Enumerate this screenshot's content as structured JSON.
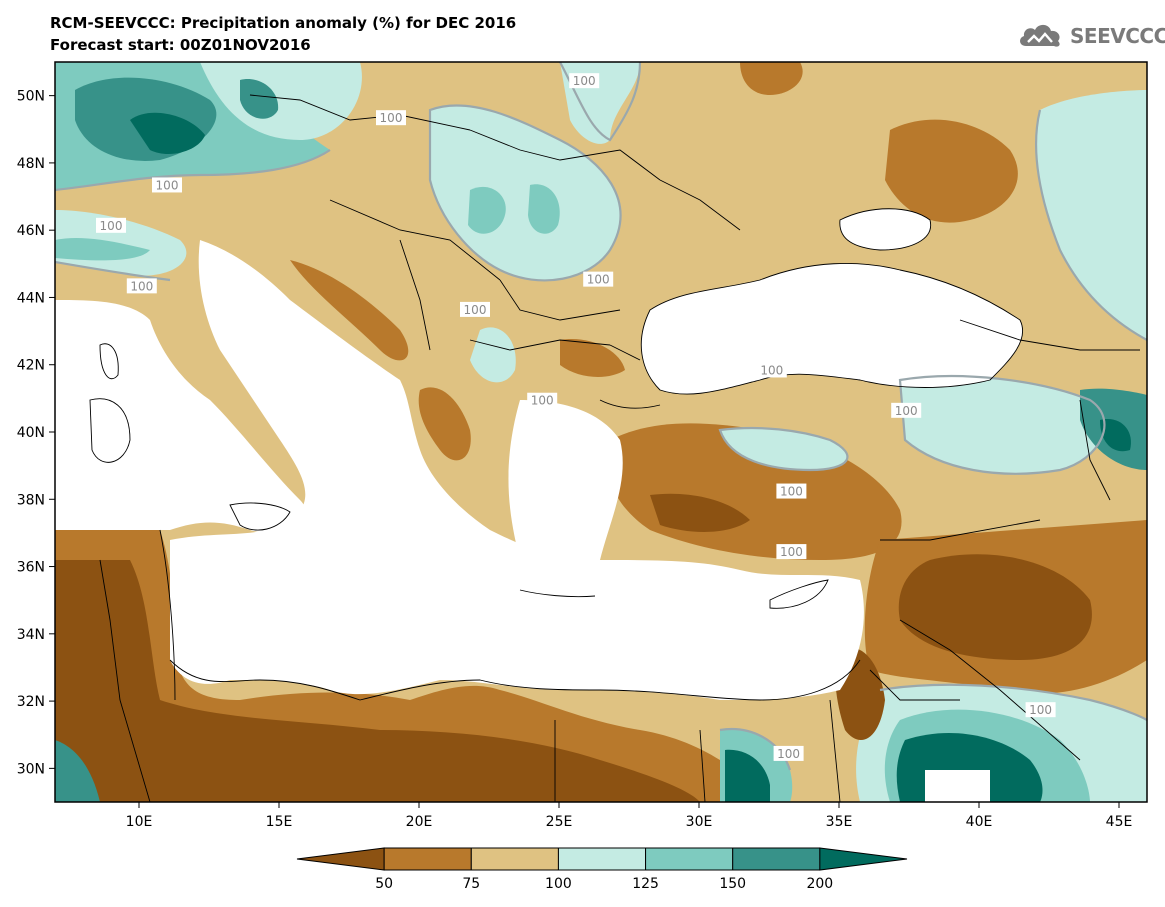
{
  "title_line1": "RCM-SEEVCCC: Precipitation anomaly (%) for DEC 2016",
  "title_line2": "Forecast start: 00Z01NOV2016",
  "logo": {
    "text": "SEEVCCC",
    "icon": "cloud-icon",
    "color": "#7a7a7a"
  },
  "map": {
    "lon_range": [
      7,
      46
    ],
    "lat_range": [
      29,
      51
    ],
    "lon_ticks": [
      {
        "value": 10,
        "label": "10E"
      },
      {
        "value": 15,
        "label": "15E"
      },
      {
        "value": 20,
        "label": "20E"
      },
      {
        "value": 25,
        "label": "25E"
      },
      {
        "value": 30,
        "label": "30E"
      },
      {
        "value": 35,
        "label": "35E"
      },
      {
        "value": 40,
        "label": "40E"
      },
      {
        "value": 45,
        "label": "45E"
      }
    ],
    "lat_ticks": [
      {
        "value": 30,
        "label": "30N"
      },
      {
        "value": 32,
        "label": "32N"
      },
      {
        "value": 34,
        "label": "34N"
      },
      {
        "value": 36,
        "label": "36N"
      },
      {
        "value": 38,
        "label": "38N"
      },
      {
        "value": 40,
        "label": "40N"
      },
      {
        "value": 42,
        "label": "42N"
      },
      {
        "value": 44,
        "label": "44N"
      },
      {
        "value": 46,
        "label": "46N"
      },
      {
        "value": 48,
        "label": "48N"
      },
      {
        "value": 50,
        "label": "50N"
      }
    ],
    "contour_labels": [
      {
        "text": "100",
        "lon": 25.9,
        "lat": 50.4
      },
      {
        "text": "100",
        "lon": 19.0,
        "lat": 49.3
      },
      {
        "text": "100",
        "lon": 11.0,
        "lat": 47.3
      },
      {
        "text": "100",
        "lon": 9.0,
        "lat": 46.1
      },
      {
        "text": "100",
        "lon": 10.1,
        "lat": 44.3
      },
      {
        "text": "100",
        "lon": 26.4,
        "lat": 44.5
      },
      {
        "text": "100",
        "lon": 22.0,
        "lat": 43.6
      },
      {
        "text": "100",
        "lon": 24.4,
        "lat": 40.9
      },
      {
        "text": "100",
        "lon": 32.6,
        "lat": 41.8
      },
      {
        "text": "100",
        "lon": 37.4,
        "lat": 40.6
      },
      {
        "text": "100",
        "lon": 33.3,
        "lat": 38.2
      },
      {
        "text": "100",
        "lon": 33.3,
        "lat": 36.4
      },
      {
        "text": "100",
        "lon": 42.2,
        "lat": 31.7
      },
      {
        "text": "100",
        "lon": 33.2,
        "lat": 30.4
      }
    ]
  },
  "colorbar": {
    "colors": [
      "#8c5212",
      "#b8792c",
      "#dfc282",
      "#c4ebe3",
      "#7ecbbf",
      "#379289",
      "#016b5e"
    ],
    "tick_labels": [
      "50",
      "75",
      "100",
      "125",
      "150",
      "200"
    ]
  },
  "colors": {
    "very_dry": "#8c5212",
    "dry": "#b8792c",
    "slightly_dry": "#dfc282",
    "slightly_wet": "#c4ebe3",
    "wet": "#7ecbbf",
    "very_wet": "#379289",
    "extremely_wet": "#016b5e",
    "sea": "#ffffff",
    "contour": "#9aa8ad"
  }
}
